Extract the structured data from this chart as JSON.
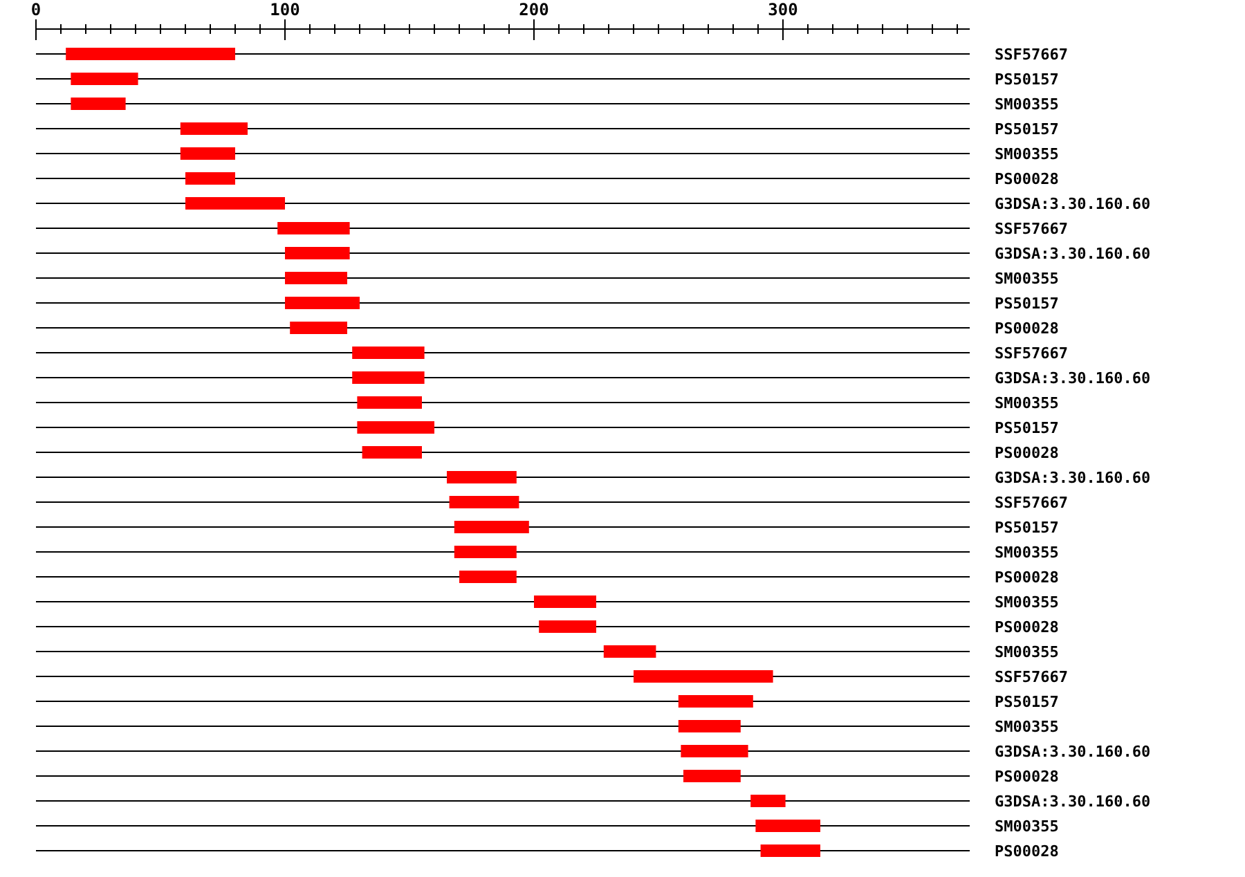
{
  "chart_data": {
    "type": "bar",
    "orientation": "horizontal",
    "grid": "y",
    "categories": [
      "SSF57667",
      "PS50157",
      "SM00355",
      "PS50157",
      "SM00355",
      "PS00028",
      "G3DSA:3.30.160.60",
      "SSF57667",
      "G3DSA:3.30.160.60",
      "SM00355",
      "PS50157",
      "PS00028",
      "SSF57667",
      "G3DSA:3.30.160.60",
      "SM00355",
      "PS50157",
      "PS00028",
      "G3DSA:3.30.160.60",
      "SSF57667",
      "PS50157",
      "SM00355",
      "PS00028",
      "SM00355",
      "PS00028",
      "SM00355",
      "SSF57667",
      "PS50157",
      "SM00355",
      "G3DSA:3.30.160.60",
      "PS00028",
      "G3DSA:3.30.160.60",
      "SM00355",
      "PS00028"
    ],
    "base": [
      12,
      14,
      14,
      58,
      58,
      60,
      60,
      97,
      100,
      100,
      100,
      102,
      127,
      127,
      129,
      129,
      131,
      165,
      166,
      168,
      168,
      170,
      200,
      202,
      228,
      240,
      258,
      258,
      259,
      260,
      287,
      289,
      291
    ],
    "values": [
      68,
      27,
      22,
      27,
      22,
      20,
      40,
      29,
      26,
      25,
      30,
      23,
      29,
      29,
      26,
      31,
      24,
      28,
      28,
      30,
      25,
      23,
      25,
      23,
      21,
      56,
      30,
      25,
      27,
      23,
      14,
      26,
      24
    ],
    "color": "#ff0000",
    "xlim": [
      0,
      375
    ],
    "xticks": [
      0,
      {
        "value": 10,
        "label": null
      },
      {
        "value": 20,
        "label": null
      },
      {
        "value": 30,
        "label": null
      },
      {
        "value": 40,
        "label": null
      },
      {
        "value": 50,
        "label": null
      },
      {
        "value": 60,
        "label": null
      },
      {
        "value": 70,
        "label": null
      },
      {
        "value": 80,
        "label": null
      },
      {
        "value": 90,
        "label": null
      },
      100,
      {
        "value": 110,
        "label": null
      },
      {
        "value": 120,
        "label": null
      },
      {
        "value": 130,
        "label": null
      },
      {
        "value": 140,
        "label": null
      },
      {
        "value": 150,
        "label": null
      },
      {
        "value": 160,
        "label": null
      },
      {
        "value": 170,
        "label": null
      },
      {
        "value": 180,
        "label": null
      },
      {
        "value": 190,
        "label": null
      },
      200,
      {
        "value": 210,
        "label": null
      },
      {
        "value": 220,
        "label": null
      },
      {
        "value": 230,
        "label": null
      },
      {
        "value": 240,
        "label": null
      },
      {
        "value": 250,
        "label": null
      },
      {
        "value": 260,
        "label": null
      },
      {
        "value": 270,
        "label": null
      },
      {
        "value": 280,
        "label": null
      },
      {
        "value": 290,
        "label": null
      },
      300,
      {
        "value": 310,
        "label": null
      },
      {
        "value": 320,
        "label": null
      },
      {
        "value": 330,
        "label": null
      },
      {
        "value": 340,
        "label": null
      },
      {
        "value": 350,
        "label": null
      },
      {
        "value": 360,
        "label": null
      },
      {
        "value": 370,
        "label": null
      }
    ]
  }
}
